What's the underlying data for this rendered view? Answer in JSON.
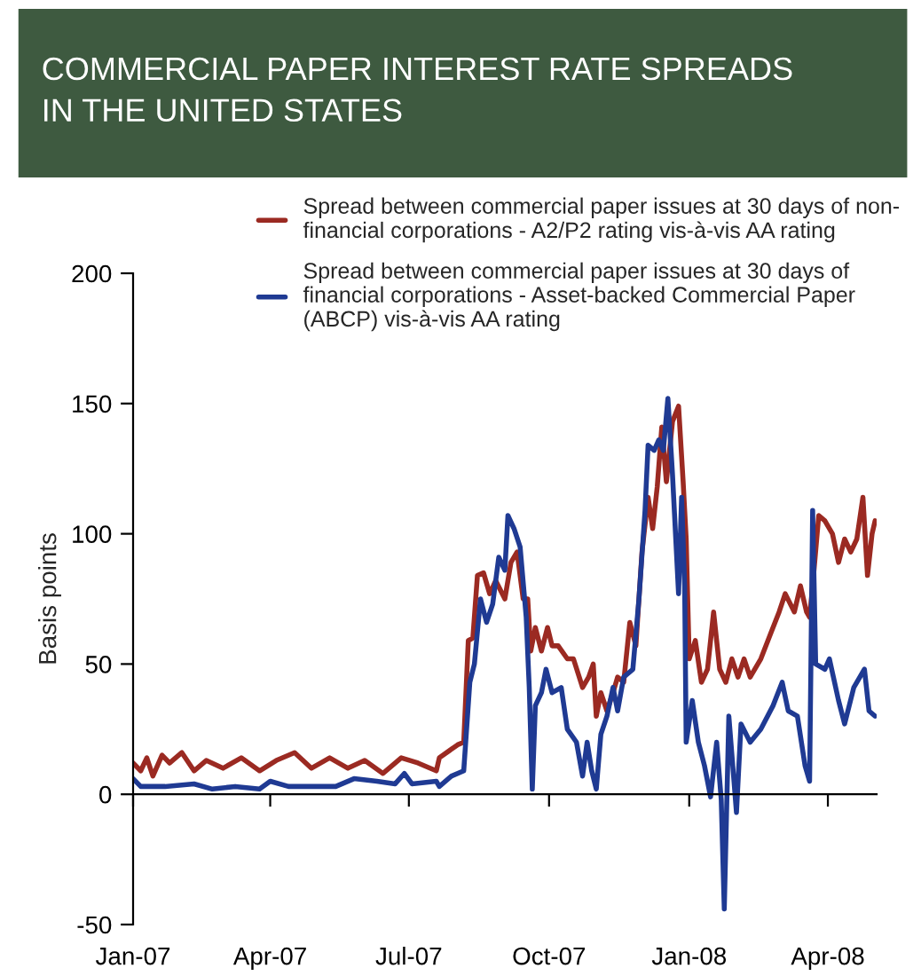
{
  "chart_data": {
    "type": "line",
    "title": "COMMERCIAL PAPER INTEREST RATE SPREADS\nIN THE UNITED STATES",
    "ylabel": "Basis points",
    "xlim": [
      "2007-01-01",
      "2008-05-03"
    ],
    "ylim": [
      -50,
      200
    ],
    "yticks": [
      -50,
      0,
      50,
      100,
      150,
      200
    ],
    "xticks": [
      {
        "value": "2007-01-01",
        "label": "Jan-07"
      },
      {
        "value": "2007-04-01",
        "label": "Apr-07"
      },
      {
        "value": "2007-07-01",
        "label": "Jul-07"
      },
      {
        "value": "2007-10-01",
        "label": "Oct-07"
      },
      {
        "value": "2008-01-01",
        "label": "Jan-08"
      },
      {
        "value": "2008-04-01",
        "label": "Apr-08"
      }
    ],
    "legend": "top",
    "marker": "none",
    "line_style": "solid",
    "series": [
      {
        "name": "Spread between commercial paper issues at 30 days of non-\nfinancial corporations - A2/P2 rating vis-à-vis AA rating",
        "color": "#9b2a22",
        "x": [
          "2007-01-01",
          "2007-01-06",
          "2007-01-10",
          "2007-01-14",
          "2007-01-20",
          "2007-01-25",
          "2007-02-02",
          "2007-02-10",
          "2007-02-18",
          "2007-03-01",
          "2007-03-13",
          "2007-03-25",
          "2007-04-05",
          "2007-04-17",
          "2007-04-28",
          "2007-05-10",
          "2007-05-22",
          "2007-06-02",
          "2007-06-14",
          "2007-06-26",
          "2007-07-07",
          "2007-07-19",
          "2007-07-21",
          "2007-08-02",
          "2007-08-06",
          "2007-08-09",
          "2007-08-12",
          "2007-08-15",
          "2007-08-19",
          "2007-08-23",
          "2007-08-27",
          "2007-09-02",
          "2007-09-06",
          "2007-09-10",
          "2007-09-14",
          "2007-09-17",
          "2007-09-19",
          "2007-09-22",
          "2007-09-26",
          "2007-09-30",
          "2007-10-03",
          "2007-10-07",
          "2007-10-13",
          "2007-10-17",
          "2007-10-23",
          "2007-10-27",
          "2007-10-30",
          "2007-11-01",
          "2007-11-04",
          "2007-11-08",
          "2007-11-12",
          "2007-11-15",
          "2007-11-19",
          "2007-11-23",
          "2007-11-27",
          "2007-12-01",
          "2007-12-05",
          "2007-12-08",
          "2007-12-11",
          "2007-12-14",
          "2007-12-17",
          "2007-12-21",
          "2007-12-25",
          "2007-12-28",
          "2007-12-30",
          "2008-01-01",
          "2008-01-05",
          "2008-01-09",
          "2008-01-13",
          "2008-01-17",
          "2008-01-21",
          "2008-01-25",
          "2008-01-29",
          "2008-02-02",
          "2008-02-06",
          "2008-02-10",
          "2008-02-17",
          "2008-02-23",
          "2008-02-29",
          "2008-03-04",
          "2008-03-10",
          "2008-03-14",
          "2008-03-18",
          "2008-03-20",
          "2008-03-22",
          "2008-03-26",
          "2008-03-30",
          "2008-04-04",
          "2008-04-08",
          "2008-04-12",
          "2008-04-16",
          "2008-04-20",
          "2008-04-24",
          "2008-04-27",
          "2008-04-30",
          "2008-05-02"
        ],
        "values": [
          12,
          9,
          14,
          7,
          15,
          12,
          16,
          9,
          13,
          10,
          14,
          9,
          13,
          16,
          10,
          14,
          10,
          13,
          8,
          14,
          12,
          9,
          14,
          19,
          20,
          59,
          60,
          84,
          85,
          77,
          82,
          75,
          89,
          93,
          75,
          75,
          55,
          64,
          55,
          64,
          57,
          57,
          52,
          52,
          41,
          45,
          50,
          30,
          39,
          32,
          39,
          45,
          43,
          66,
          57,
          93,
          114,
          102,
          118,
          141,
          120,
          143,
          149,
          120,
          98,
          52,
          59,
          43,
          48,
          70,
          48,
          43,
          52,
          45,
          52,
          45,
          52,
          61,
          70,
          77,
          70,
          80,
          70,
          68,
          80,
          107,
          105,
          100,
          89,
          98,
          93,
          98,
          114,
          84,
          100,
          105
        ]
      },
      {
        "name": "Spread between commercial paper issues at 30 days of\nfinancial corporations - Asset-backed Commercial Paper\n(ABCP) vis-à-vis AA rating",
        "color": "#1f3a93",
        "x": [
          "2007-01-01",
          "2007-01-06",
          "2007-01-22",
          "2007-02-10",
          "2007-02-22",
          "2007-03-09",
          "2007-03-25",
          "2007-04-01",
          "2007-04-13",
          "2007-04-28",
          "2007-05-14",
          "2007-05-26",
          "2007-06-10",
          "2007-06-22",
          "2007-06-28",
          "2007-07-03",
          "2007-07-19",
          "2007-07-21",
          "2007-07-29",
          "2007-08-06",
          "2007-08-10",
          "2007-08-13",
          "2007-08-17",
          "2007-08-21",
          "2007-08-25",
          "2007-08-29",
          "2007-09-02",
          "2007-09-04",
          "2007-09-08",
          "2007-09-12",
          "2007-09-16",
          "2007-09-18",
          "2007-09-20",
          "2007-09-22",
          "2007-09-26",
          "2007-09-29",
          "2007-10-03",
          "2007-10-09",
          "2007-10-13",
          "2007-10-19",
          "2007-10-23",
          "2007-10-26",
          "2007-10-29",
          "2007-11-01",
          "2007-11-04",
          "2007-11-08",
          "2007-11-12",
          "2007-11-15",
          "2007-11-19",
          "2007-11-25",
          "2007-11-29",
          "2007-12-03",
          "2007-12-05",
          "2007-12-09",
          "2007-12-12",
          "2007-12-15",
          "2007-12-18",
          "2007-12-21",
          "2007-12-25",
          "2007-12-27",
          "2007-12-29",
          "2007-12-30",
          "2008-01-03",
          "2008-01-07",
          "2008-01-11",
          "2008-01-15",
          "2008-01-19",
          "2008-01-22",
          "2008-01-24",
          "2008-01-27",
          "2008-02-01",
          "2008-02-04",
          "2008-02-10",
          "2008-02-17",
          "2008-02-25",
          "2008-03-02",
          "2008-03-06",
          "2008-03-12",
          "2008-03-17",
          "2008-03-20",
          "2008-03-22",
          "2008-03-24",
          "2008-03-30",
          "2008-04-02",
          "2008-04-08",
          "2008-04-12",
          "2008-04-18",
          "2008-04-25",
          "2008-04-28",
          "2008-05-02"
        ],
        "values": [
          6,
          3,
          3,
          4,
          2,
          3,
          2,
          5,
          3,
          3,
          3,
          6,
          5,
          4,
          8,
          4,
          5,
          3,
          7,
          9,
          43,
          50,
          75,
          66,
          73,
          91,
          86,
          107,
          102,
          95,
          68,
          41,
          2,
          34,
          39,
          48,
          39,
          41,
          25,
          20,
          7,
          20,
          9,
          2,
          23,
          30,
          41,
          32,
          45,
          48,
          75,
          109,
          134,
          132,
          136,
          132,
          152,
          123,
          77,
          114,
          80,
          20,
          36,
          20,
          11,
          -1,
          20,
          -2,
          -44,
          30,
          -7,
          27,
          20,
          25,
          34,
          43,
          32,
          30,
          11,
          5,
          109,
          50,
          48,
          52,
          36,
          27,
          41,
          48,
          32,
          30
        ]
      }
    ]
  }
}
